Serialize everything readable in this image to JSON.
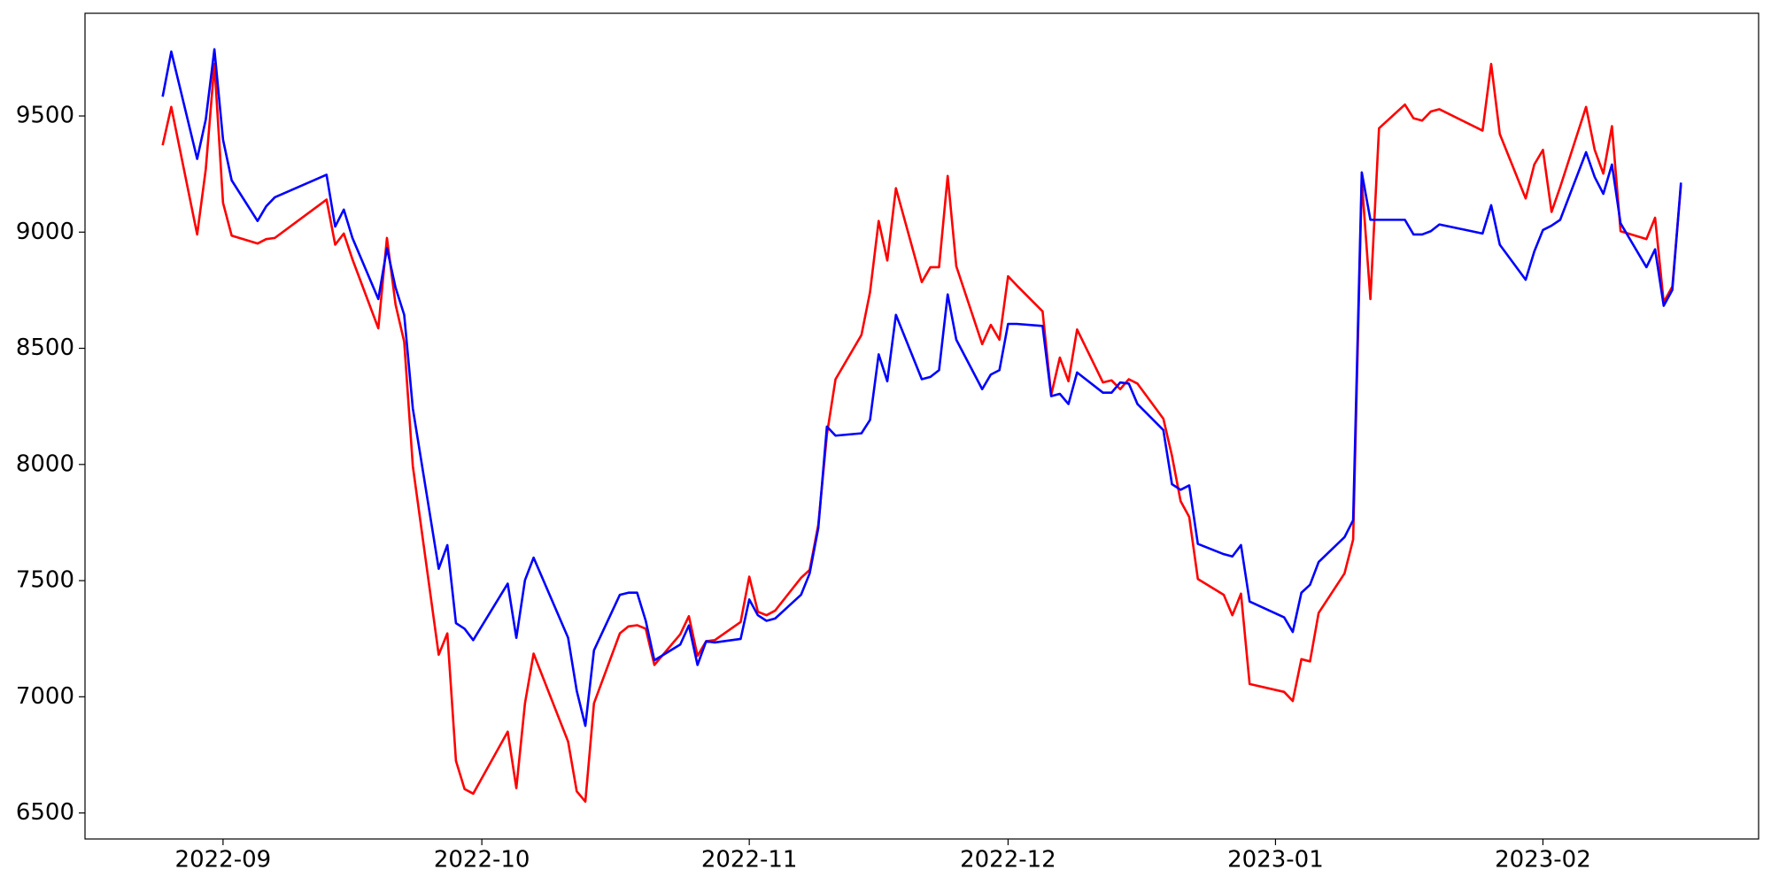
{
  "chart_data": {
    "type": "line",
    "x": [
      "2022-08-25",
      "2022-08-26",
      "2022-08-29",
      "2022-08-30",
      "2022-08-31",
      "2022-09-01",
      "2022-09-02",
      "2022-09-05",
      "2022-09-06",
      "2022-09-07",
      "2022-09-13",
      "2022-09-14",
      "2022-09-15",
      "2022-09-16",
      "2022-09-19",
      "2022-09-20",
      "2022-09-21",
      "2022-09-22",
      "2022-09-23",
      "2022-09-26",
      "2022-09-27",
      "2022-09-28",
      "2022-09-29",
      "2022-09-30",
      "2022-10-04",
      "2022-10-05",
      "2022-10-06",
      "2022-10-07",
      "2022-10-11",
      "2022-10-12",
      "2022-10-13",
      "2022-10-14",
      "2022-10-17",
      "2022-10-18",
      "2022-10-19",
      "2022-10-20",
      "2022-10-21",
      "2022-10-24",
      "2022-10-25",
      "2022-10-26",
      "2022-10-27",
      "2022-10-28",
      "2022-10-31",
      "2022-11-01",
      "2022-11-02",
      "2022-11-03",
      "2022-11-04",
      "2022-11-07",
      "2022-11-08",
      "2022-11-09",
      "2022-11-10",
      "2022-11-11",
      "2022-11-14",
      "2022-11-15",
      "2022-11-16",
      "2022-11-17",
      "2022-11-18",
      "2022-11-21",
      "2022-11-22",
      "2022-11-23",
      "2022-11-24",
      "2022-11-25",
      "2022-11-28",
      "2022-11-29",
      "2022-11-30",
      "2022-12-01",
      "2022-12-02",
      "2022-12-05",
      "2022-12-06",
      "2022-12-07",
      "2022-12-08",
      "2022-12-09",
      "2022-12-12",
      "2022-12-13",
      "2022-12-14",
      "2022-12-15",
      "2022-12-16",
      "2022-12-19",
      "2022-12-20",
      "2022-12-21",
      "2022-12-22",
      "2022-12-23",
      "2022-12-26",
      "2022-12-27",
      "2022-12-28",
      "2022-12-29",
      "2023-01-02",
      "2023-01-03",
      "2023-01-04",
      "2023-01-05",
      "2023-01-06",
      "2023-01-09",
      "2023-01-10",
      "2023-01-11",
      "2023-01-12",
      "2023-01-13",
      "2023-01-16",
      "2023-01-17",
      "2023-01-18",
      "2023-01-19",
      "2023-01-20",
      "2023-01-25",
      "2023-01-26",
      "2023-01-27",
      "2023-01-30",
      "2023-01-31",
      "2023-02-01",
      "2023-02-02",
      "2023-02-03",
      "2023-02-06",
      "2023-02-07",
      "2023-02-08",
      "2023-02-09",
      "2023-02-10",
      "2023-02-13",
      "2023-02-14",
      "2023-02-15",
      "2023-02-16",
      "2023-02-17"
    ],
    "series": [
      {
        "color": "#ff0000",
        "values": [
          9374,
          9539,
          8990,
          9271,
          9724,
          9126,
          8985,
          8951,
          8970,
          8975,
          9140,
          8946,
          8994,
          8883,
          8586,
          8975,
          8688,
          8528,
          7993,
          7181,
          7273,
          6724,
          6603,
          6583,
          6850,
          6607,
          6972,
          7186,
          6807,
          6593,
          6549,
          6972,
          7273,
          7303,
          7308,
          7293,
          7137,
          7269,
          7347,
          7176,
          7239,
          7244,
          7322,
          7517,
          7366,
          7351,
          7371,
          7512,
          7546,
          7740,
          8129,
          8367,
          8557,
          8742,
          9048,
          8878,
          9189,
          8785,
          8849,
          8849,
          9242,
          8853,
          8518,
          8601,
          8537,
          8810,
          8771,
          8659,
          8299,
          8460,
          8358,
          8581,
          8353,
          8362,
          8324,
          8367,
          8348,
          8197,
          8037,
          7842,
          7774,
          7507,
          7439,
          7351,
          7444,
          7055,
          7021,
          6982,
          7162,
          7152,
          7361,
          7531,
          7677,
          9223,
          8712,
          9447,
          9549,
          9490,
          9480,
          9519,
          9529,
          9437,
          9724,
          9422,
          9145,
          9291,
          9354,
          9087,
          9194,
          9539,
          9354,
          9252,
          9456,
          9004,
          8970,
          9062,
          8698,
          8766,
          9203
        ]
      },
      {
        "color": "#0000ff",
        "values": [
          9583,
          9777,
          9315,
          9485,
          9787,
          9398,
          9223,
          9048,
          9111,
          9150,
          9247,
          9024,
          9097,
          8975,
          8712,
          8931,
          8761,
          8644,
          8241,
          7551,
          7653,
          7317,
          7293,
          7244,
          7487,
          7254,
          7502,
          7599,
          7254,
          7026,
          6875,
          7200,
          7439,
          7448,
          7448,
          7327,
          7157,
          7225,
          7307,
          7137,
          7239,
          7234,
          7249,
          7419,
          7351,
          7327,
          7337,
          7439,
          7531,
          7726,
          8163,
          8124,
          8134,
          8192,
          8474,
          8358,
          8644,
          8367,
          8377,
          8406,
          8732,
          8537,
          8324,
          8387,
          8406,
          8605,
          8605,
          8596,
          8294,
          8304,
          8260,
          8396,
          8309,
          8309,
          8353,
          8348,
          8260,
          8148,
          7915,
          7891,
          7910,
          7658,
          7614,
          7604,
          7653,
          7410,
          7342,
          7279,
          7448,
          7482,
          7580,
          7687,
          7760,
          9257,
          9053,
          9053,
          9053,
          8990,
          8990,
          9004,
          9033,
          8994,
          9116,
          8946,
          8795,
          8917,
          9009,
          9028,
          9053,
          9344,
          9237,
          9165,
          9291,
          9038,
          8849,
          8926,
          8683,
          8751,
          9213
        ]
      }
    ],
    "xlim": [
      "2022-08-16",
      "2023-02-26"
    ],
    "xticks": [
      "2022-09",
      "2022-10",
      "2022-11",
      "2022-12",
      "2023-01",
      "2023-02"
    ],
    "ylim": [
      6388,
      9942
    ],
    "yticks": [
      6500,
      7000,
      7500,
      8000,
      8500,
      9000,
      9500
    ]
  }
}
